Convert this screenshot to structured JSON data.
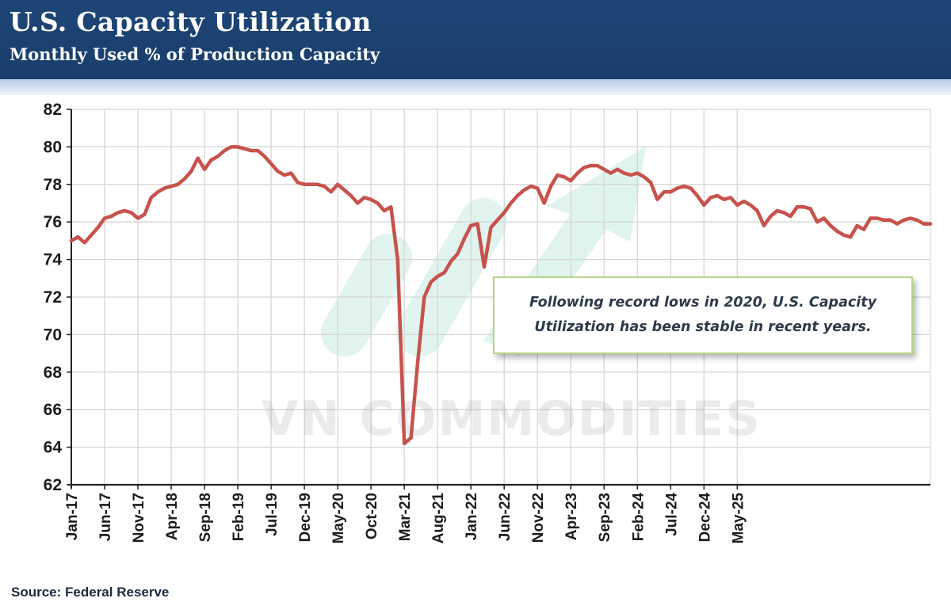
{
  "header": {
    "title": "U.S. Capacity Utilization",
    "subtitle": "Monthly Used % of Production Capacity"
  },
  "source": "Source: Federal Reserve",
  "watermark": "VN COMMODITIES",
  "colors": {
    "header_bg": "#1b426f",
    "line": "#c8524c",
    "watermark_arrow": "#5fc6a8",
    "note_border": "#b6d48a"
  },
  "chart_data": {
    "type": "line",
    "title": "U.S. Capacity Utilization",
    "subtitle": "Monthly Used % of Production Capacity",
    "xlabel": "",
    "ylabel": "",
    "ylim": [
      62,
      82
    ],
    "yticks": [
      62,
      64,
      66,
      68,
      70,
      72,
      74,
      76,
      78,
      80,
      82
    ],
    "xtick_labels": [
      "Jan-17",
      "Jun-17",
      "Nov-17",
      "Apr-18",
      "Sep-18",
      "Feb-19",
      "Jul-19",
      "Dec-19",
      "May-20",
      "Oct-20",
      "Mar-21",
      "Aug-21",
      "Jan-22",
      "Jun-22",
      "Nov-22",
      "Apr-23",
      "Sep-23",
      "Feb-24",
      "Jul-24",
      "Dec-24",
      "May-25"
    ],
    "grid": true,
    "legend": "none",
    "annotation": "Following record lows in 2020, U.S. Capacity Utilization has been stable in recent years.",
    "series": [
      {
        "values": [
          75.0,
          75.2,
          74.9,
          75.3,
          75.7,
          76.2,
          76.3,
          76.5,
          76.6,
          76.5,
          76.2,
          76.4,
          77.3,
          77.6,
          77.8,
          77.9,
          78.0,
          78.3,
          78.7,
          79.4,
          78.8,
          79.3,
          79.5,
          79.8,
          80.0,
          80.0,
          79.9,
          79.8,
          79.8,
          79.5,
          79.1,
          78.7,
          78.5,
          78.6,
          78.1,
          78.0,
          78.0,
          78.0,
          77.9,
          77.6,
          78.0,
          77.7,
          77.4,
          77.0,
          77.3,
          77.2,
          77.0,
          76.6,
          76.8,
          74.0,
          64.2,
          64.5,
          68.5,
          72.0,
          72.8,
          73.1,
          73.3,
          73.9,
          74.3,
          75.1,
          75.8,
          75.9,
          73.6,
          75.7,
          76.1,
          76.5,
          77.0,
          77.4,
          77.7,
          77.9,
          77.8,
          77.0,
          77.9,
          78.5,
          78.4,
          78.2,
          78.6,
          78.9,
          79.0,
          79.0,
          78.8,
          78.6,
          78.8,
          78.6,
          78.5,
          78.6,
          78.4,
          78.1,
          77.2,
          77.6,
          77.6,
          77.8,
          77.9,
          77.8,
          77.4,
          76.9,
          77.3,
          77.4,
          77.2,
          77.3,
          76.9,
          77.1,
          76.9,
          76.6,
          75.8,
          76.3,
          76.6,
          76.5,
          76.3,
          76.8,
          76.8,
          76.7,
          76.0,
          76.2,
          75.8,
          75.5,
          75.3,
          75.2,
          75.8,
          75.6,
          76.2,
          76.2,
          76.1,
          76.1,
          75.9,
          76.1,
          76.2,
          76.1,
          75.9,
          75.9
        ]
      }
    ]
  }
}
